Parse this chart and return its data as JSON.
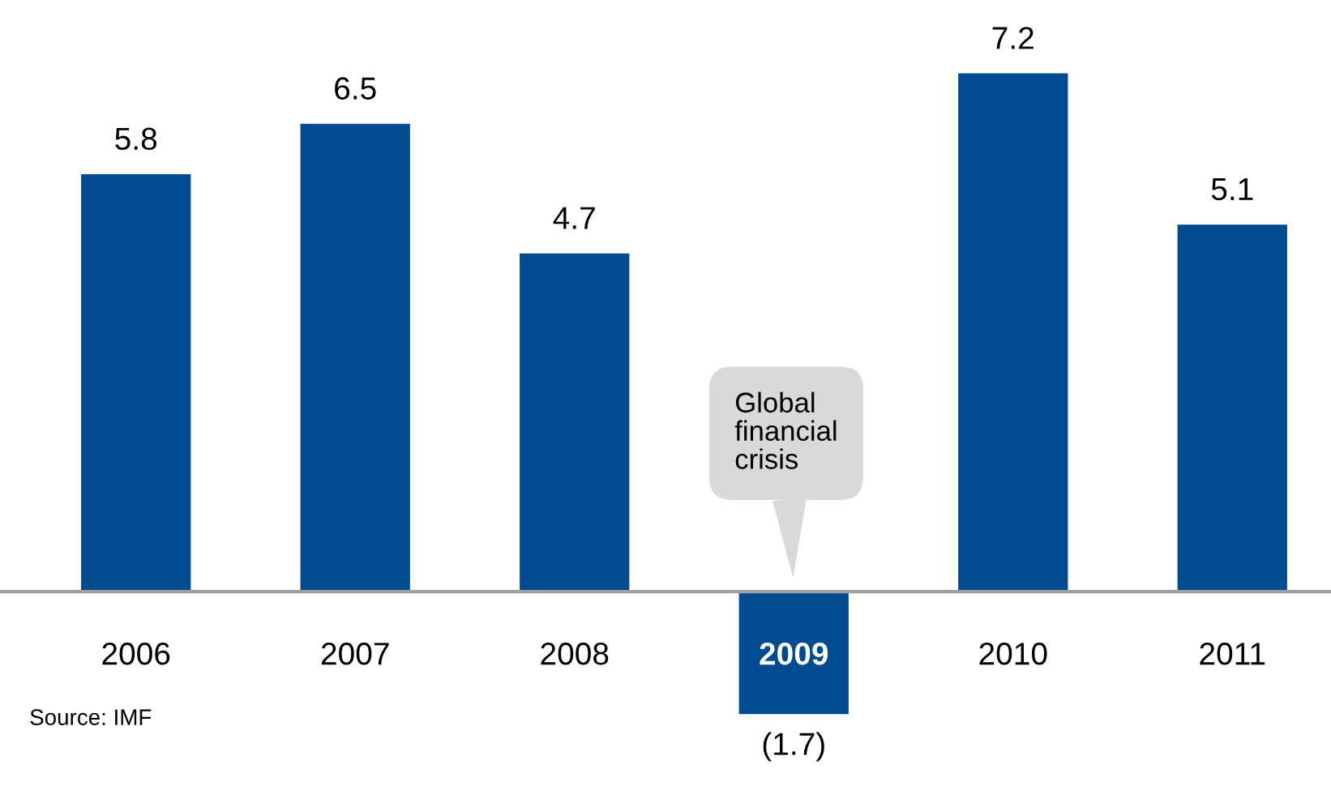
{
  "chart_data": {
    "type": "bar",
    "categories": [
      "2006",
      "2007",
      "2008",
      "2009",
      "2010",
      "2011"
    ],
    "values": [
      5.8,
      6.5,
      4.7,
      -1.7,
      7.2,
      5.1
    ],
    "color": "#004a8f",
    "value_labels": [
      "5.8",
      "6.5",
      "4.7",
      "(1.7)",
      "7.2",
      "5.1"
    ],
    "annotations": [
      "Global\nfinancial\ncrisis",
      "Source: IMF"
    ]
  }
}
